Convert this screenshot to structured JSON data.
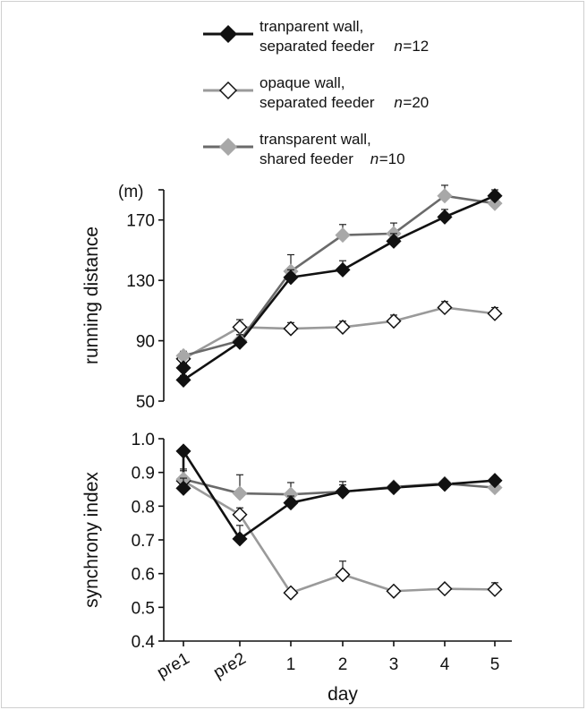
{
  "chart_data": {
    "type": "line",
    "x_categories": [
      "pre1",
      "pre2",
      "1",
      "2",
      "3",
      "4",
      "5"
    ],
    "xlabel": "day",
    "legend": {
      "placement": "top",
      "entries": [
        {
          "line1": "tranparent wall,",
          "line2": "separated feeder",
          "n_label": "n",
          "n_value": "=12",
          "line_color": "#111111",
          "marker_fill": "#111111",
          "marker_stroke": "#111111"
        },
        {
          "line1": "opaque wall,",
          "line2": "separated feeder",
          "n_label": "n",
          "n_value": "=20",
          "line_color": "#9a9a9a",
          "marker_fill": "#ffffff",
          "marker_stroke": "#111111"
        },
        {
          "line1": "transparent wall,",
          "line2": "shared feeder",
          "n_label": "n",
          "n_value": "=10",
          "line_color": "#6a6a6a",
          "marker_fill": "#a8a8a8",
          "marker_stroke": "#a8a8a8"
        }
      ]
    },
    "panels": [
      {
        "ylabel": "running distance",
        "unit": "(m)",
        "ylim": [
          50,
          190
        ],
        "yticks": [
          50,
          90,
          130,
          170
        ],
        "series": [
          {
            "x": [
              0,
              0,
              1,
              2,
              3,
              4,
              5,
              6
            ],
            "y": [
              72,
              64,
              89,
              132,
              137,
              156,
              172,
              186
            ],
            "err": [
              3,
              3,
              5,
              5,
              6,
              5,
              5,
              4
            ],
            "line_color": "#111111",
            "marker_fill": "#111111",
            "marker_stroke": "#111111"
          },
          {
            "x": [
              0,
              1,
              2,
              3,
              4,
              5,
              6
            ],
            "y": [
              78,
              99,
              98,
              99,
              103,
              112,
              108
            ],
            "err": [
              4,
              5,
              4,
              4,
              4,
              4,
              4
            ],
            "line_color": "#9a9a9a",
            "marker_fill": "#ffffff",
            "marker_stroke": "#111111"
          },
          {
            "x": [
              0,
              1,
              2,
              3,
              4,
              5,
              6
            ],
            "y": [
              80,
              90,
              136,
              160,
              161,
              186,
              181
            ],
            "err": [
              3,
              4,
              11,
              7,
              7,
              7,
              6
            ],
            "line_color": "#6a6a6a",
            "marker_fill": "#a8a8a8",
            "marker_stroke": "#a8a8a8"
          }
        ]
      },
      {
        "ylabel": "synchrony index",
        "ylim": [
          0.4,
          1.0
        ],
        "yticks": [
          0.4,
          0.5,
          0.6,
          0.7,
          0.8,
          0.9,
          1.0
        ],
        "series": [
          {
            "x": [
              0,
              0,
              1,
              2,
              3,
              4,
              5,
              6
            ],
            "y": [
              0.853,
              0.963,
              0.703,
              0.81,
              0.843,
              0.855,
              0.865,
              0.876
            ],
            "err": [
              0.03,
              0.0,
              0.04,
              0.02,
              0.02,
              0.01,
              0.01,
              0.01
            ],
            "line_color": "#111111",
            "marker_fill": "#111111",
            "marker_stroke": "#111111"
          },
          {
            "x": [
              0,
              1,
              2,
              3,
              4,
              5,
              6
            ],
            "y": [
              0.875,
              0.775,
              0.543,
              0.597,
              0.548,
              0.555,
              0.553
            ],
            "err": [
              0.03,
              0.02,
              0.0,
              0.04,
              0.0,
              0.0,
              0.02
            ],
            "line_color": "#9a9a9a",
            "marker_fill": "#ffffff",
            "marker_stroke": "#111111"
          },
          {
            "x": [
              0,
              1,
              2,
              3,
              4,
              5,
              6
            ],
            "y": [
              0.88,
              0.838,
              0.835,
              0.843,
              0.857,
              0.867,
              0.855
            ],
            "err": [
              0.03,
              0.055,
              0.035,
              0.03,
              0.01,
              0.01,
              0.02
            ],
            "line_color": "#6a6a6a",
            "marker_fill": "#a8a8a8",
            "marker_stroke": "#a8a8a8"
          }
        ]
      }
    ]
  }
}
